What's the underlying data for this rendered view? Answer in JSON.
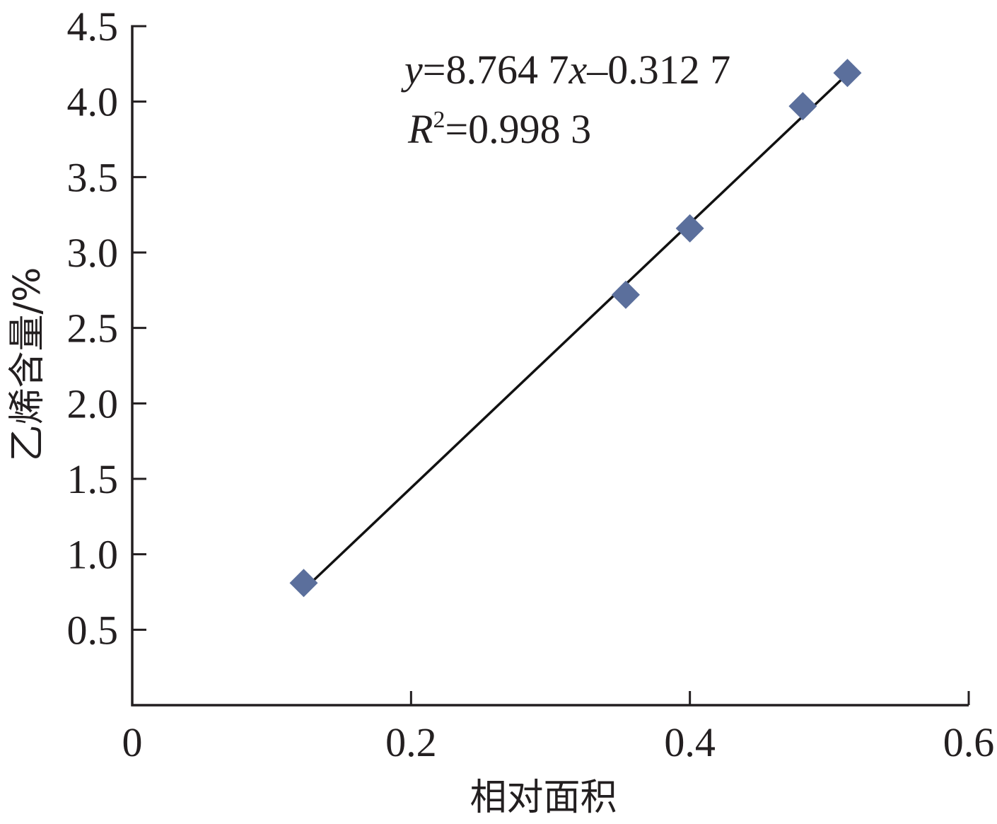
{
  "chart_data": {
    "type": "scatter",
    "xlabel": "相对面积",
    "ylabel": "乙烯含量/%",
    "xlim": [
      0,
      0.6
    ],
    "ylim": [
      0,
      4.5
    ],
    "x_ticks": [
      0,
      0.2,
      0.4,
      0.6
    ],
    "x_tick_labels": [
      "0",
      "0.2",
      "0.4",
      "0.6"
    ],
    "y_ticks": [
      0.5,
      1.0,
      1.5,
      2.0,
      2.5,
      3.0,
      3.5,
      4.0,
      4.5
    ],
    "y_tick_labels": [
      "0.5",
      "1.0",
      "1.5",
      "2.0",
      "2.5",
      "3.0",
      "3.5",
      "4.0",
      "4.5"
    ],
    "grid": false,
    "marker_color": "#5b6f9c",
    "marker": "diamond",
    "points": [
      {
        "x": 0.123,
        "y": 0.81
      },
      {
        "x": 0.354,
        "y": 2.72
      },
      {
        "x": 0.4,
        "y": 3.16
      },
      {
        "x": 0.481,
        "y": 3.97
      },
      {
        "x": 0.513,
        "y": 4.19
      }
    ],
    "trendline": {
      "slope": 8.7647,
      "intercept": -0.3127,
      "x_range": [
        0.123,
        0.513
      ],
      "equation_y": "y",
      "equation_rest": "=8.764 7",
      "equation_x": "x",
      "equation_tail": "–0.312 7",
      "r2_R": "R",
      "r2_sup": "2",
      "r2_value": "=0.998 3"
    }
  }
}
